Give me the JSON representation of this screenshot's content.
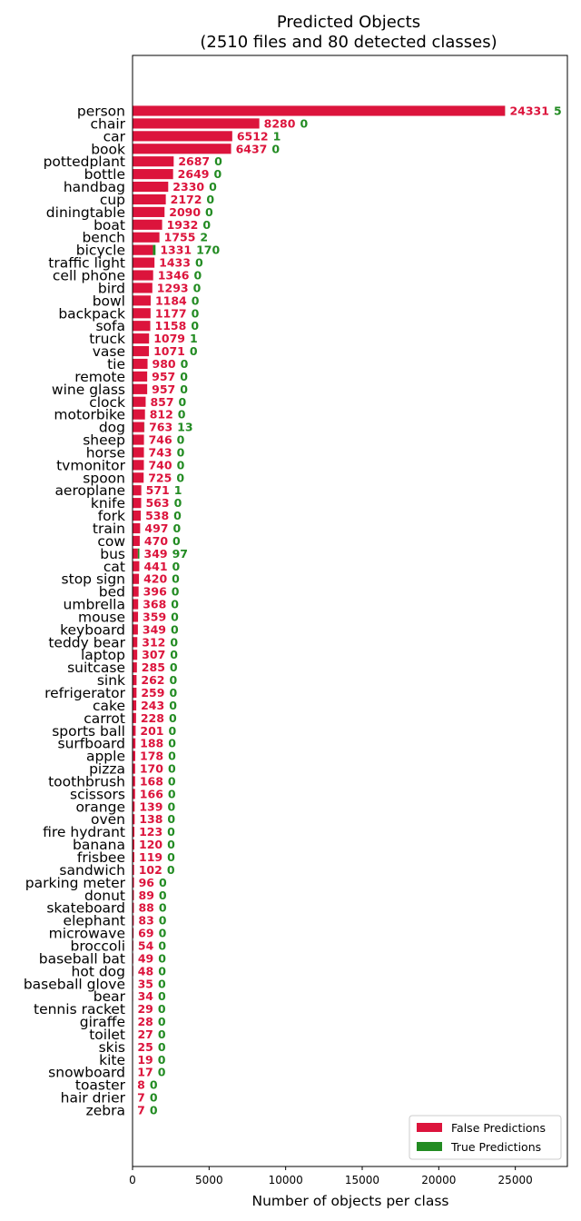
{
  "chart_data": {
    "type": "bar",
    "orientation": "horizontal",
    "title": "Predicted Objects",
    "subtitle": "(2510 files and 80 detected classes)",
    "xlabel": "Number of objects per class",
    "ylabel": "",
    "xlim": [
      0,
      28400
    ],
    "xticks": [
      0,
      5000,
      10000,
      15000,
      20000,
      25000
    ],
    "stacked": true,
    "grid": false,
    "legend_position": "bottom-right",
    "categories": [
      "person",
      "chair",
      "car",
      "book",
      "pottedplant",
      "bottle",
      "handbag",
      "cup",
      "diningtable",
      "boat",
      "bench",
      "bicycle",
      "traffic light",
      "cell phone",
      "bird",
      "bowl",
      "backpack",
      "sofa",
      "truck",
      "vase",
      "tie",
      "remote",
      "wine glass",
      "clock",
      "motorbike",
      "dog",
      "sheep",
      "horse",
      "tvmonitor",
      "spoon",
      "aeroplane",
      "knife",
      "fork",
      "train",
      "cow",
      "bus",
      "cat",
      "stop sign",
      "bed",
      "umbrella",
      "mouse",
      "keyboard",
      "teddy bear",
      "laptop",
      "suitcase",
      "sink",
      "refrigerator",
      "cake",
      "carrot",
      "sports ball",
      "surfboard",
      "apple",
      "pizza",
      "toothbrush",
      "scissors",
      "orange",
      "oven",
      "fire hydrant",
      "banana",
      "frisbee",
      "sandwich",
      "parking meter",
      "donut",
      "skateboard",
      "elephant",
      "microwave",
      "broccoli",
      "baseball bat",
      "hot dog",
      "baseball glove",
      "bear",
      "tennis racket",
      "giraffe",
      "toilet",
      "skis",
      "kite",
      "snowboard",
      "toaster",
      "hair drier",
      "zebra"
    ],
    "series": [
      {
        "name": "False Predictions",
        "color": "#dc143c",
        "values": [
          24331,
          8280,
          6512,
          6437,
          2687,
          2649,
          2330,
          2172,
          2090,
          1932,
          1755,
          1331,
          1433,
          1346,
          1293,
          1184,
          1177,
          1158,
          1079,
          1071,
          980,
          957,
          957,
          857,
          812,
          763,
          746,
          743,
          740,
          725,
          571,
          563,
          538,
          497,
          470,
          349,
          441,
          420,
          396,
          368,
          359,
          349,
          312,
          307,
          285,
          262,
          259,
          243,
          228,
          201,
          188,
          178,
          170,
          168,
          166,
          139,
          138,
          123,
          120,
          119,
          102,
          96,
          89,
          88,
          83,
          69,
          54,
          49,
          48,
          35,
          34,
          29,
          28,
          27,
          25,
          19,
          17,
          8,
          7,
          7
        ]
      },
      {
        "name": "True Predictions",
        "color": "#228b22",
        "values": [
          5,
          0,
          1,
          0,
          0,
          0,
          0,
          0,
          0,
          0,
          2,
          170,
          0,
          0,
          0,
          0,
          0,
          0,
          1,
          0,
          0,
          0,
          0,
          0,
          0,
          13,
          0,
          0,
          0,
          0,
          1,
          0,
          0,
          0,
          0,
          97,
          0,
          0,
          0,
          0,
          0,
          0,
          0,
          0,
          0,
          0,
          0,
          0,
          0,
          0,
          0,
          0,
          0,
          0,
          0,
          0,
          0,
          0,
          0,
          0,
          0,
          0,
          0,
          0,
          0,
          0,
          0,
          0,
          0,
          0,
          0,
          0,
          0,
          0,
          0,
          0,
          0,
          0,
          0,
          0
        ]
      }
    ]
  }
}
